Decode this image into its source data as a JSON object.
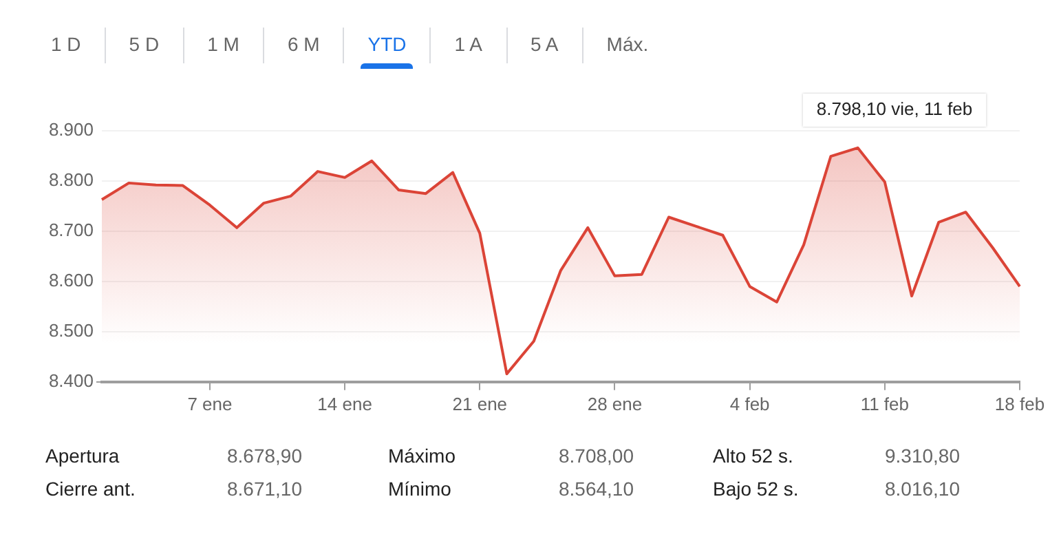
{
  "chart_data": {
    "type": "area",
    "categories": [
      null,
      null,
      null,
      null,
      "7 ene",
      null,
      null,
      null,
      null,
      "14 ene",
      null,
      null,
      null,
      null,
      "21 ene",
      null,
      null,
      null,
      null,
      "28 ene",
      null,
      null,
      null,
      null,
      "4 feb",
      null,
      null,
      null,
      null,
      "11 feb",
      null,
      null,
      null,
      null,
      "18 feb"
    ],
    "series": [
      {
        "color": "#db4437",
        "values": [
          8763,
          8796,
          8792,
          8791,
          8752,
          8707,
          8756,
          8770,
          8819,
          8807,
          8840,
          8782,
          8775,
          8817,
          8696,
          8416,
          8481,
          8622,
          8707,
          8611,
          8614,
          8728,
          8710,
          8692,
          8590,
          8559,
          8673,
          8849,
          8866,
          8798.1,
          8571,
          8718,
          8738,
          8667,
          8590
        ]
      }
    ],
    "ylim": [
      8400,
      8900
    ],
    "yticks": [
      {
        "value": 8400,
        "label": "8.400"
      },
      {
        "value": 8500,
        "label": "8.500"
      },
      {
        "value": 8600,
        "label": "8.600"
      },
      {
        "value": 8700,
        "label": "8.700"
      },
      {
        "value": 8800,
        "label": "8.800"
      },
      {
        "value": 8900,
        "label": "8.900"
      }
    ],
    "grid": "y",
    "legend": false,
    "annotations": [
      "1 D",
      "5 D",
      "1 M",
      "6 M",
      "YTD",
      "1 A",
      "5 A",
      "Máx.",
      "8.798,10 vie, 11 feb",
      "Apertura",
      "8.678,90",
      "Máximo",
      "8.708,00",
      "Alto 52 s.",
      "9.310,80",
      "Cierre ant.",
      "8.671,10",
      "Mínimo",
      "8.564,10",
      "Bajo 52 s.",
      "8.016,10"
    ]
  }
}
